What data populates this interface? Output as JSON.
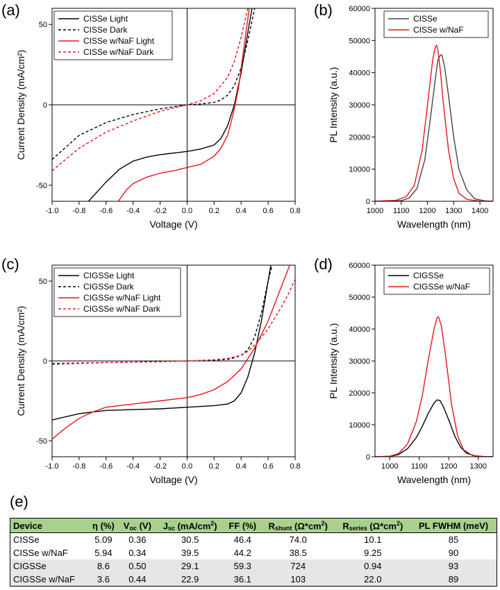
{
  "panel_labels": [
    "(a)",
    "(b)",
    "(c)",
    "(d)",
    "(e)"
  ],
  "chart_data": [
    {
      "id": "a",
      "type": "line",
      "xlabel": "Voltage (V)",
      "ylabel": "Current Density (mA/cm²)",
      "xlim": [
        -1.0,
        0.8
      ],
      "ylim": [
        -60,
        60
      ],
      "xticks": [
        "-1.0",
        "-0.8",
        "-0.6",
        "-0.4",
        "-0.2",
        "0.0",
        "0.2",
        "0.4",
        "0.6",
        "0.8"
      ],
      "yticks": [
        "-50",
        "0",
        "50"
      ],
      "legend_position": "top-left",
      "series": [
        {
          "name": "CISSe Light",
          "color": "#000000",
          "dash": "solid",
          "x": [
            -0.73,
            -0.6,
            -0.5,
            -0.4,
            -0.3,
            -0.2,
            -0.1,
            0.0,
            0.1,
            0.2,
            0.25,
            0.3,
            0.35,
            0.4,
            0.45,
            0.48
          ],
          "y": [
            -60,
            -48,
            -40,
            -35,
            -32.5,
            -31,
            -30,
            -29,
            -27.5,
            -25,
            -21,
            -13,
            0,
            20,
            45,
            60
          ]
        },
        {
          "name": "CISSe Dark",
          "color": "#000000",
          "dash": "dashed",
          "x": [
            -1.0,
            -0.8,
            -0.6,
            -0.4,
            -0.2,
            0.0,
            0.1,
            0.2,
            0.25,
            0.3,
            0.35,
            0.4,
            0.45,
            0.5
          ],
          "y": [
            -34,
            -19,
            -11,
            -6,
            -2.5,
            0,
            0.5,
            1.5,
            3,
            6,
            12,
            23,
            40,
            60
          ]
        },
        {
          "name": "CISSe w/NaF Light",
          "color": "#e8141c",
          "dash": "solid",
          "x": [
            -0.51,
            -0.45,
            -0.4,
            -0.3,
            -0.2,
            -0.1,
            0.0,
            0.1,
            0.2,
            0.25,
            0.3,
            0.34,
            0.38,
            0.42,
            0.46
          ],
          "y": [
            -60,
            -53,
            -49,
            -45,
            -42.5,
            -41,
            -39,
            -37,
            -32,
            -27,
            -19,
            -6,
            10,
            35,
            60
          ]
        },
        {
          "name": "CISSe w/NaF Dark",
          "color": "#e8141c",
          "dash": "dashed",
          "x": [
            -1.0,
            -0.8,
            -0.6,
            -0.4,
            -0.2,
            0.0,
            0.1,
            0.2,
            0.3,
            0.35,
            0.4,
            0.45
          ],
          "y": [
            -41,
            -27,
            -17,
            -10,
            -4,
            0,
            2.5,
            7,
            17,
            27,
            42,
            60
          ]
        }
      ]
    },
    {
      "id": "b",
      "type": "line",
      "xlabel": "Wavelength (nm)",
      "ylabel": "PL Intensity (a.u.)",
      "xlim": [
        1000,
        1450
      ],
      "ylim": [
        0,
        60000
      ],
      "xticks": [
        "1000",
        "1100",
        "1200",
        "1300",
        "1400"
      ],
      "yticks": [
        "0",
        "10000",
        "20000",
        "30000",
        "40000",
        "50000",
        "60000"
      ],
      "legend_position": "top-right",
      "series": [
        {
          "name": "CISSe",
          "color": "#444444",
          "dash": "solid",
          "x": [
            1000,
            1100,
            1130,
            1160,
            1190,
            1210,
            1230,
            1240,
            1250,
            1255,
            1265,
            1280,
            1300,
            1320,
            1350,
            1380,
            1420,
            1450
          ],
          "y": [
            0,
            200,
            1000,
            4000,
            13000,
            25000,
            38000,
            44000,
            45500,
            45500,
            42000,
            33000,
            20000,
            10000,
            3500,
            800,
            100,
            0
          ]
        },
        {
          "name": "CISSe w/NaF",
          "color": "#e8141c",
          "dash": "solid",
          "x": [
            1000,
            1080,
            1120,
            1150,
            1180,
            1200,
            1220,
            1230,
            1235,
            1240,
            1250,
            1260,
            1280,
            1300,
            1320,
            1350,
            1400,
            1450
          ],
          "y": [
            0,
            300,
            1500,
            5000,
            16000,
            30000,
            44000,
            48000,
            48500,
            47000,
            40000,
            31000,
            16000,
            7000,
            2500,
            600,
            50,
            0
          ]
        }
      ]
    },
    {
      "id": "c",
      "type": "line",
      "xlabel": "Voltage (V)",
      "ylabel": "Current Density (mA/cm²)",
      "xlim": [
        -1.0,
        0.8
      ],
      "ylim": [
        -60,
        60
      ],
      "xticks": [
        "-1.0",
        "-0.8",
        "-0.6",
        "-0.4",
        "-0.2",
        "0.0",
        "0.2",
        "0.4",
        "0.6",
        "0.8"
      ],
      "yticks": [
        "-50",
        "0",
        "50"
      ],
      "legend_position": "top-left",
      "series": [
        {
          "name": "CIGSSe Light",
          "color": "#000000",
          "dash": "solid",
          "x": [
            -1.0,
            -0.8,
            -0.6,
            -0.4,
            -0.2,
            0.0,
            0.2,
            0.3,
            0.35,
            0.4,
            0.45,
            0.5,
            0.55,
            0.6,
            0.62
          ],
          "y": [
            -37,
            -33,
            -31,
            -30.5,
            -30,
            -29,
            -28,
            -27,
            -25,
            -20,
            -10,
            5,
            25,
            50,
            60
          ]
        },
        {
          "name": "CIGSSe Dark",
          "color": "#000000",
          "dash": "dashed",
          "x": [
            -1.0,
            -0.6,
            -0.2,
            0.0,
            0.2,
            0.3,
            0.35,
            0.4,
            0.45,
            0.5,
            0.55,
            0.6,
            0.63
          ],
          "y": [
            -2,
            -1,
            -0.5,
            0,
            0.5,
            1,
            2,
            3.5,
            7,
            15,
            30,
            50,
            60
          ]
        },
        {
          "name": "CIGSSe w/NaF Light",
          "color": "#e8141c",
          "dash": "solid",
          "x": [
            -1.0,
            -0.9,
            -0.8,
            -0.7,
            -0.6,
            -0.4,
            -0.2,
            0.0,
            0.1,
            0.2,
            0.3,
            0.4,
            0.5,
            0.6,
            0.7,
            0.76
          ],
          "y": [
            -49,
            -42,
            -36,
            -32,
            -29,
            -27,
            -25,
            -23,
            -21,
            -18,
            -13,
            -5,
            8,
            25,
            47,
            60
          ]
        },
        {
          "name": "CIGSSe w/NaF Dark",
          "color": "#e8141c",
          "dash": "dashed",
          "x": [
            -1.0,
            -0.6,
            -0.2,
            0.0,
            0.2,
            0.3,
            0.4,
            0.45,
            0.5,
            0.55,
            0.6,
            0.65,
            0.7,
            0.75,
            0.8
          ],
          "y": [
            -1.5,
            -1,
            -0.5,
            0,
            0.8,
            1.5,
            3.5,
            6,
            10,
            15,
            20,
            27,
            34,
            42,
            51
          ]
        }
      ]
    },
    {
      "id": "d",
      "type": "line",
      "xlabel": "Wavelength (nm)",
      "ylabel": "PL Intensity (a.u.)",
      "xlim": [
        950,
        1350
      ],
      "ylim": [
        0,
        60000
      ],
      "xticks": [
        "1000",
        "1100",
        "1200",
        "1300"
      ],
      "yticks": [
        "0",
        "10000",
        "20000",
        "30000",
        "40000",
        "50000",
        "60000"
      ],
      "legend_position": "top-right",
      "series": [
        {
          "name": "CIGSSe",
          "color": "#000000",
          "dash": "solid",
          "x": [
            950,
            1000,
            1030,
            1060,
            1090,
            1110,
            1130,
            1150,
            1160,
            1170,
            1180,
            1200,
            1220,
            1240,
            1260,
            1290,
            1320,
            1350
          ],
          "y": [
            0,
            100,
            700,
            2500,
            6000,
            9500,
            13500,
            16800,
            17800,
            17600,
            16000,
            11500,
            6500,
            3000,
            1100,
            250,
            50,
            0
          ]
        },
        {
          "name": "CIGSSe w/NaF",
          "color": "#e8141c",
          "dash": "solid",
          "x": [
            950,
            1000,
            1030,
            1060,
            1090,
            1110,
            1130,
            1150,
            1160,
            1165,
            1175,
            1190,
            1210,
            1230,
            1250,
            1280,
            1320,
            1350
          ],
          "y": [
            0,
            150,
            1000,
            4000,
            11000,
            19000,
            30000,
            40000,
            43500,
            43800,
            41000,
            31000,
            16000,
            6500,
            2200,
            400,
            50,
            0
          ]
        }
      ]
    }
  ],
  "table": {
    "headers": {
      "device": "Device",
      "eta": "η (%)",
      "voc_main": "V",
      "voc_sub": "oc",
      "voc_unit": " (V)",
      "jsc_main": "J",
      "jsc_sub": "sc",
      "jsc_unit": " (mA/cm",
      "jsc_sup": "2",
      "jsc_close": ")",
      "ff": "FF (%)",
      "rshunt_main": "R",
      "rshunt_sub": "shunt",
      "rshunt_unit": " (Ω*cm",
      "rshunt_sup": "2",
      "rshunt_close": ")",
      "rseries_main": "R",
      "rseries_sub": "series",
      "rseries_unit": " (Ω*cm",
      "rseries_sup": "2",
      "rseries_close": ")",
      "fwhm": "PL FWHM (meV)"
    },
    "rows": [
      {
        "device": "CISSe",
        "eta": "5.09",
        "voc": "0.36",
        "jsc": "30.5",
        "ff": "46.4",
        "rshunt": "74.0",
        "rseries": "10.1",
        "fwhm": "85"
      },
      {
        "device": "CISSe w/NaF",
        "eta": "5.94",
        "voc": "0.34",
        "jsc": "39.5",
        "ff": "44.2",
        "rshunt": "38.5",
        "rseries": "9.25",
        "fwhm": "90"
      },
      {
        "device": "CIGSSe",
        "eta": "8.6",
        "voc": "0.50",
        "jsc": "29.1",
        "ff": "59.3",
        "rshunt": "724",
        "rseries": "0.94",
        "fwhm": "93"
      },
      {
        "device": "CIGSSe w/NaF",
        "eta": "3.6",
        "voc": "0.44",
        "jsc": "22.9",
        "ff": "36.1",
        "rshunt": "103",
        "rseries": "22.0",
        "fwhm": "89"
      }
    ]
  }
}
